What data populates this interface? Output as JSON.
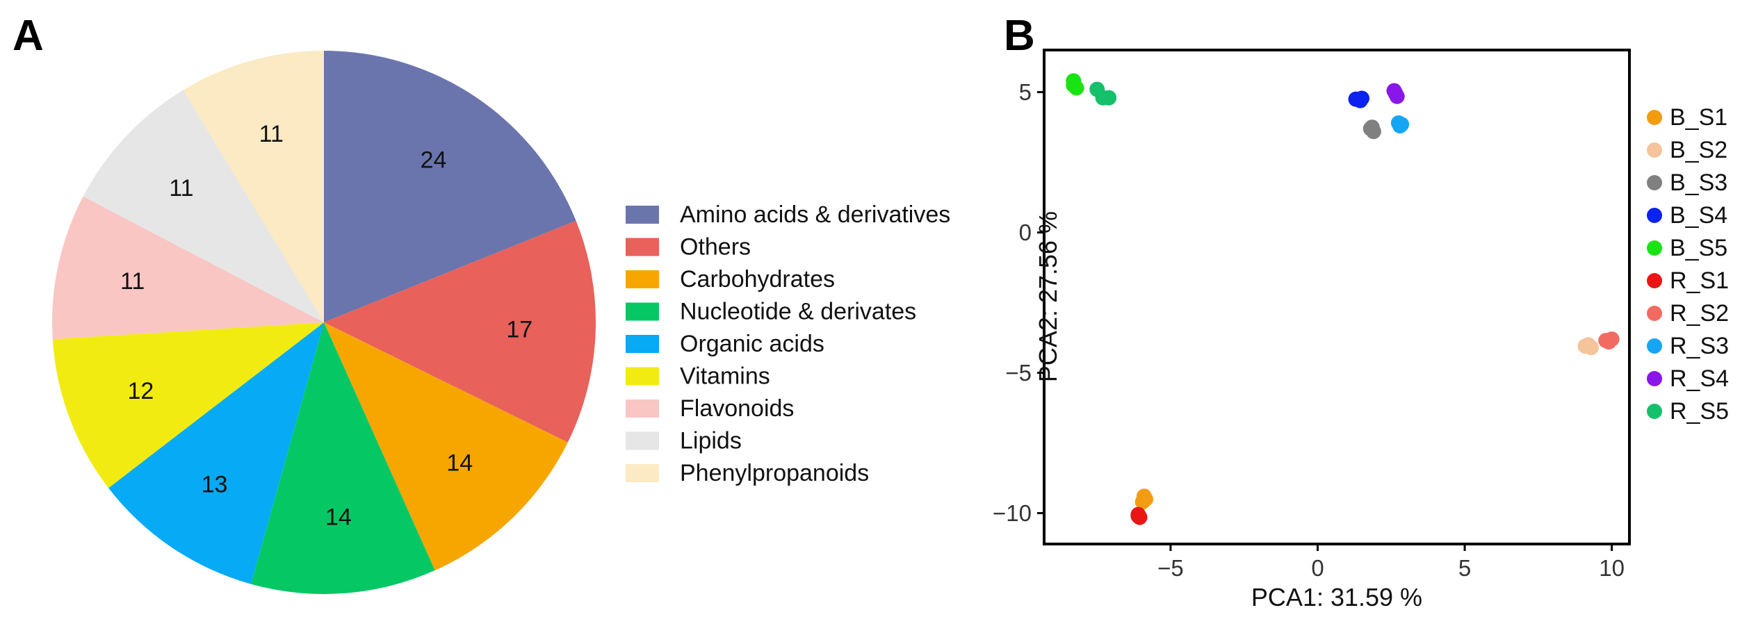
{
  "chart_data": [
    {
      "panel": "A",
      "type": "pie",
      "start": "12 o'clock, clockwise",
      "slices": [
        {
          "label": "Amino acids & derivatives",
          "value": 24,
          "color": "#6B75AD"
        },
        {
          "label": "Others",
          "value": 17,
          "color": "#E8615A"
        },
        {
          "label": "Carbohydrates",
          "value": 14,
          "color": "#F7A600"
        },
        {
          "label": "Nucleotide & derivates",
          "value": 14,
          "color": "#05C865"
        },
        {
          "label": "Organic acids",
          "value": 13,
          "color": "#06AAF5"
        },
        {
          "label": "Vitamins",
          "value": 12,
          "color": "#F2EB12"
        },
        {
          "label": "Flavonoids",
          "value": 11,
          "color": "#F9C6C4"
        },
        {
          "label": "Lipids",
          "value": 11,
          "color": "#E6E6E6"
        },
        {
          "label": "Phenylpropanoids",
          "value": 11,
          "color": "#FBEAC3"
        }
      ],
      "legend_position": "right"
    },
    {
      "panel": "B",
      "type": "scatter",
      "xlabel": "PCA1: 31.59 %",
      "ylabel": "PCA2: 27.56 %",
      "xlim": [
        -9.3,
        10.6
      ],
      "ylim": [
        -11.1,
        6.5
      ],
      "xticks": [
        -5,
        0,
        5,
        10
      ],
      "yticks": [
        -10,
        -5,
        0,
        5
      ],
      "xtick_labels": [
        "−5",
        "0",
        "5",
        "10"
      ],
      "ytick_labels": [
        "−10",
        "−5",
        "0",
        "5"
      ],
      "grid": false,
      "legend_position": "right",
      "series": [
        {
          "name": "B_S1",
          "color": "#F39C12",
          "points": [
            [
              -5.9,
              -9.4
            ],
            [
              -5.95,
              -9.6
            ],
            [
              -5.85,
              -9.5
            ]
          ]
        },
        {
          "name": "B_S2",
          "color": "#F5C49A",
          "points": [
            [
              9.1,
              -4.05
            ],
            [
              9.3,
              -4.1
            ],
            [
              9.2,
              -4.0
            ]
          ]
        },
        {
          "name": "B_S3",
          "color": "#808080",
          "points": [
            [
              1.8,
              3.7
            ],
            [
              1.9,
              3.6
            ],
            [
              1.85,
              3.75
            ]
          ]
        },
        {
          "name": "B_S4",
          "color": "#0B22F0",
          "points": [
            [
              1.3,
              4.75
            ],
            [
              1.45,
              4.7
            ],
            [
              1.5,
              4.78
            ]
          ]
        },
        {
          "name": "B_S5",
          "color": "#19E413",
          "points": [
            [
              -8.3,
              5.4
            ],
            [
              -8.2,
              5.15
            ],
            [
              -8.3,
              5.25
            ]
          ]
        },
        {
          "name": "R_S1",
          "color": "#EB1515",
          "points": [
            [
              -6.1,
              -10.1
            ],
            [
              -6.05,
              -10.15
            ],
            [
              -6.1,
              -10.05
            ]
          ]
        },
        {
          "name": "R_S2",
          "color": "#F36A62",
          "points": [
            [
              9.8,
              -3.85
            ],
            [
              10.0,
              -3.8
            ],
            [
              9.9,
              -3.9
            ]
          ]
        },
        {
          "name": "R_S3",
          "color": "#16A5F2",
          "points": [
            [
              2.8,
              3.8
            ],
            [
              2.75,
              3.9
            ],
            [
              2.85,
              3.85
            ]
          ]
        },
        {
          "name": "R_S4",
          "color": "#8A17EA",
          "points": [
            [
              2.6,
              5.05
            ],
            [
              2.7,
              4.85
            ],
            [
              2.65,
              4.95
            ]
          ]
        },
        {
          "name": "R_S5",
          "color": "#14C06A",
          "points": [
            [
              -7.5,
              5.1
            ],
            [
              -7.3,
              4.8
            ],
            [
              -7.1,
              4.8
            ]
          ]
        }
      ]
    }
  ],
  "panel_labels": {
    "a": "A",
    "b": "B"
  }
}
